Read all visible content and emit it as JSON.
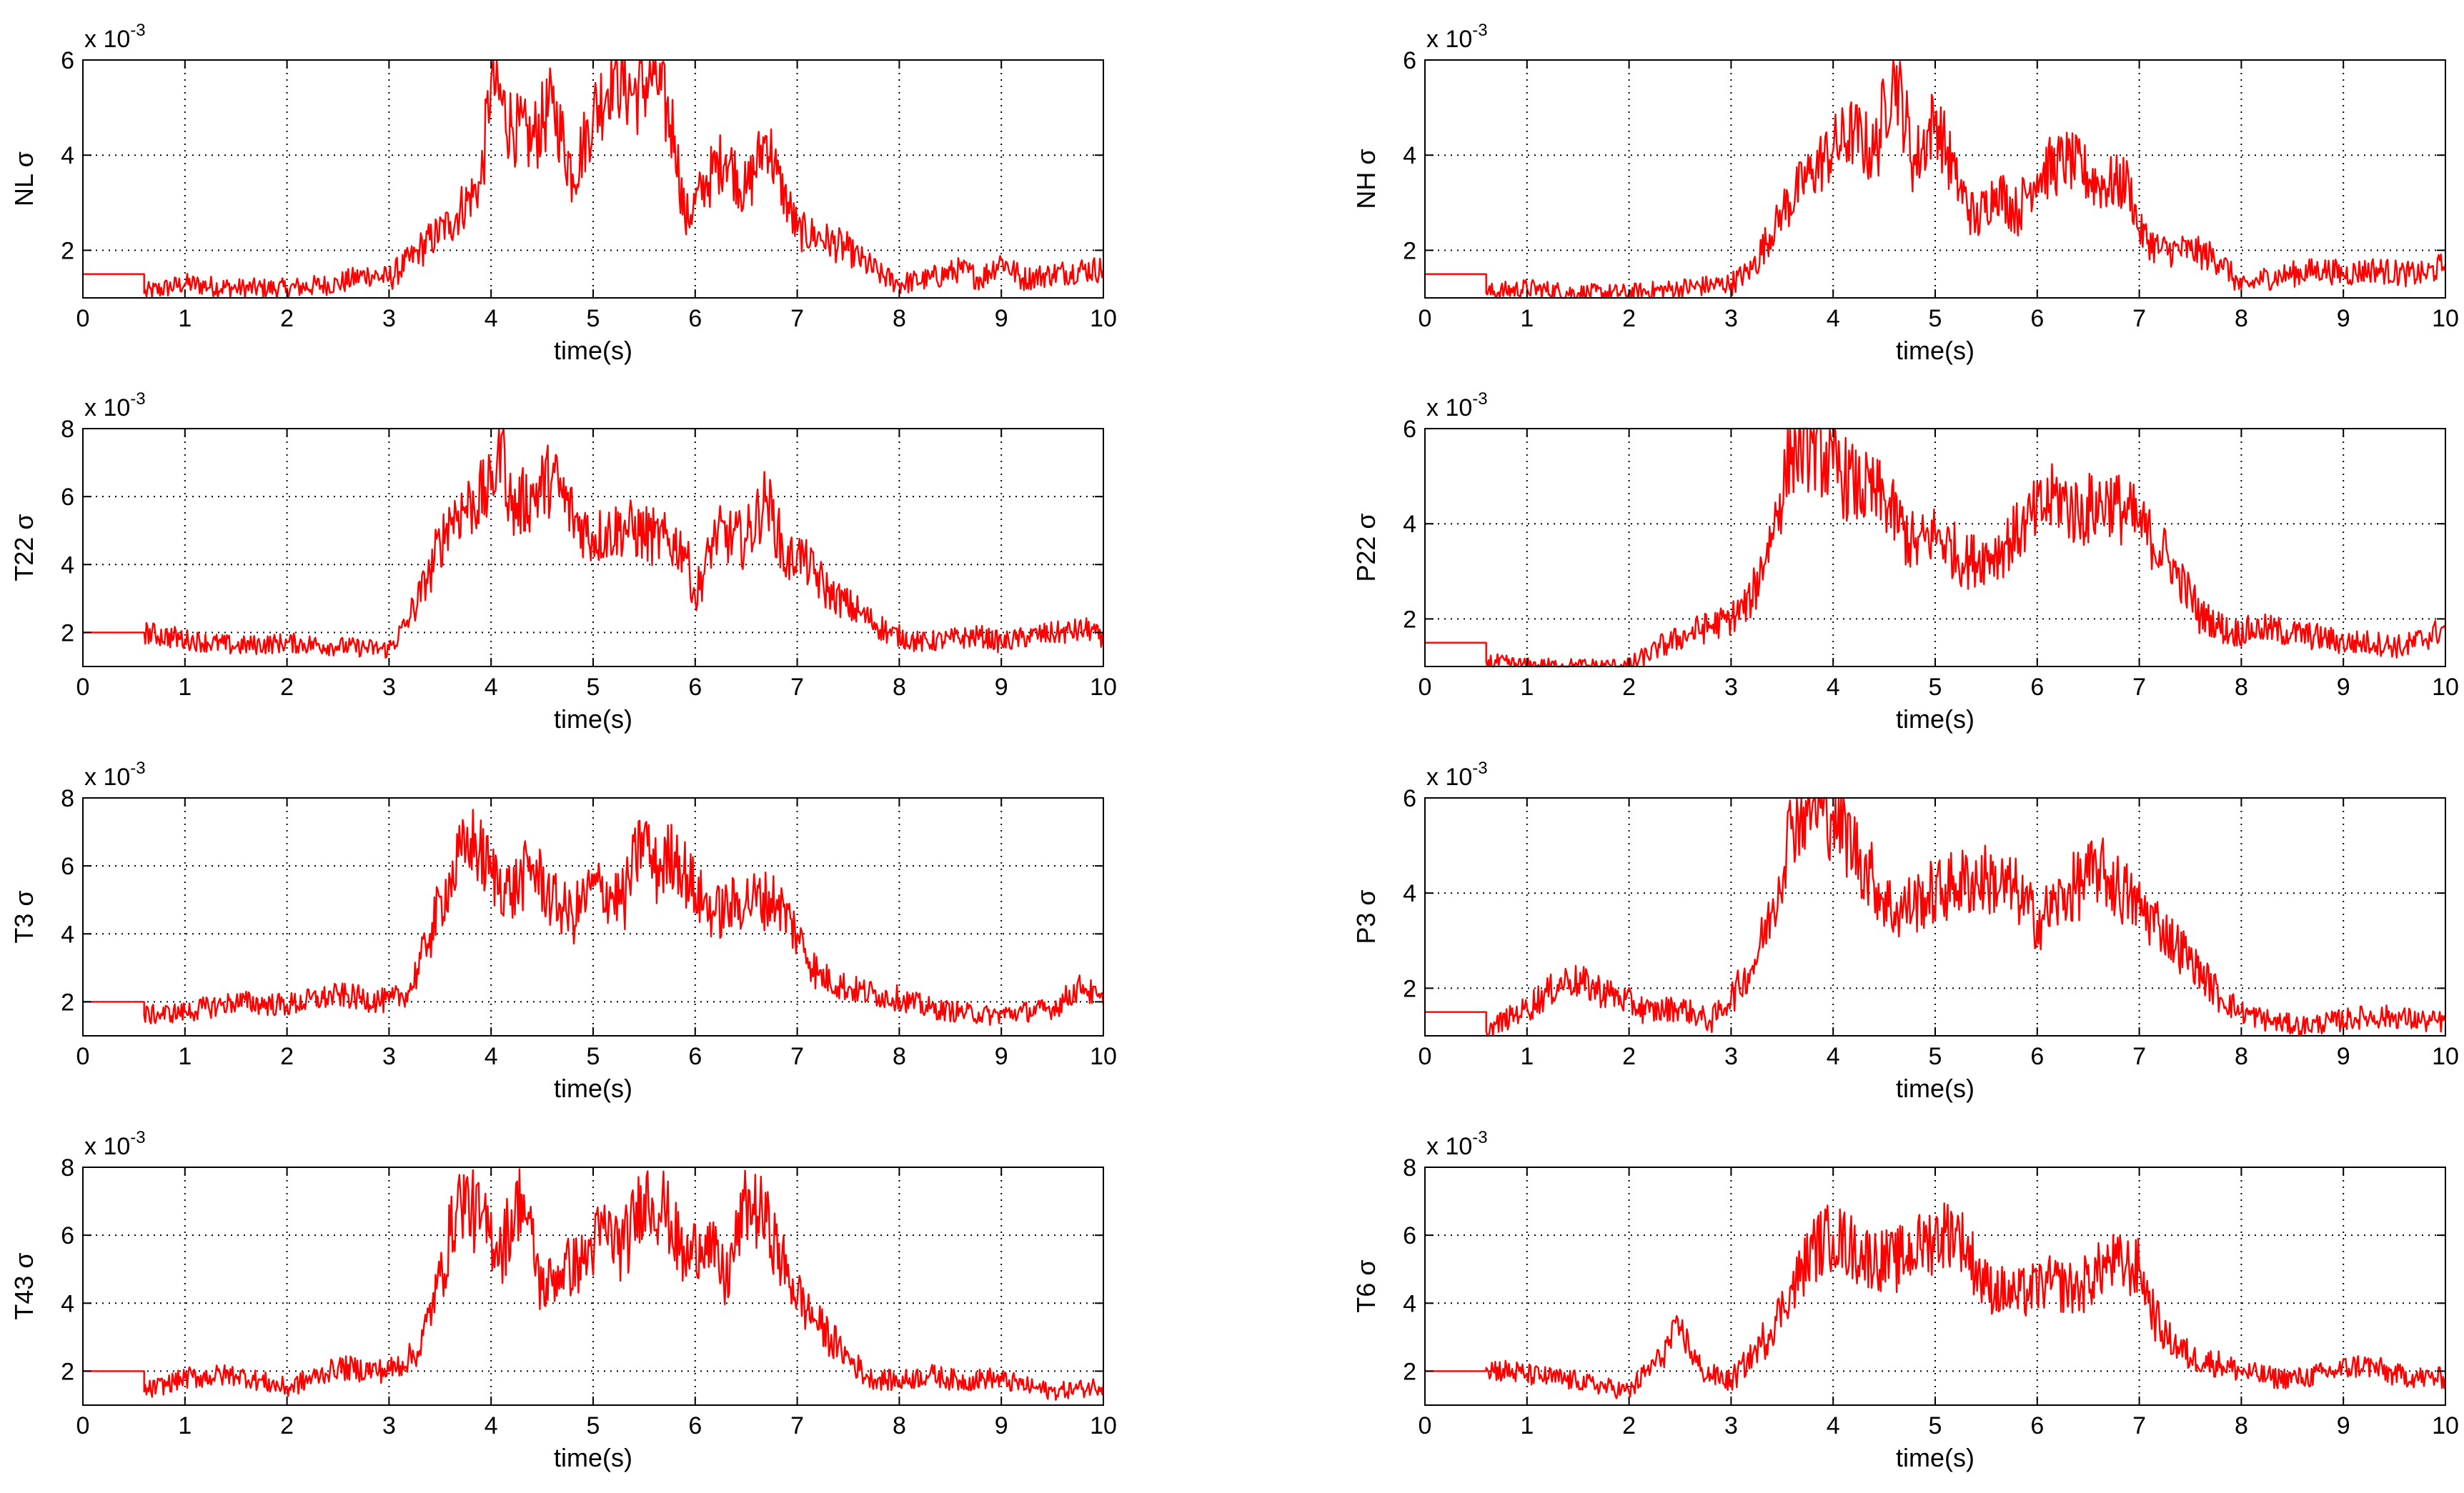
{
  "figure": {
    "background": "#ffffff",
    "line_color": "#ff0000",
    "axis_color": "#000000",
    "grid_style": "dotted"
  },
  "chart_data": [
    {
      "type": "line",
      "ylabel": "NL σ",
      "xlabel": "time(s)",
      "exponent_label": "x 10",
      "exponent": "-3",
      "xlim": [
        0,
        10
      ],
      "ylim": [
        1,
        6
      ],
      "xticks": [
        0,
        1,
        2,
        3,
        4,
        5,
        6,
        7,
        8,
        9,
        10
      ],
      "yticks": [
        2,
        4,
        6
      ],
      "grid": true,
      "series": [
        {
          "color": "#ff0000",
          "x": [
            0,
            0.6,
            0.6,
            1.0,
            1.5,
            2.0,
            2.5,
            2.8,
            3.0,
            3.3,
            3.6,
            3.9,
            4.0,
            4.2,
            4.4,
            4.6,
            4.8,
            5.0,
            5.2,
            5.4,
            5.6,
            5.8,
            5.9,
            6.1,
            6.3,
            6.5,
            6.7,
            6.8,
            7.0,
            7.2,
            7.5,
            7.8,
            8.0,
            8.3,
            8.6,
            8.8,
            9.0,
            9.2,
            9.5,
            9.8,
            10.0
          ],
          "y": [
            1.5,
            1.5,
            1.1,
            1.3,
            1.2,
            1.2,
            1.3,
            1.5,
            1.4,
            2.0,
            2.6,
            3.4,
            5.6,
            4.6,
            4.3,
            5.1,
            3.6,
            4.8,
            5.8,
            5.3,
            5.7,
            4.4,
            2.6,
            3.4,
            4.0,
            3.2,
            4.4,
            3.6,
            2.4,
            2.3,
            2.0,
            1.5,
            1.3,
            1.4,
            1.6,
            1.4,
            1.8,
            1.4,
            1.5,
            1.6,
            1.6
          ]
        }
      ]
    },
    {
      "type": "line",
      "ylabel": "NH σ",
      "xlabel": "time(s)",
      "exponent_label": "x 10",
      "exponent": "-3",
      "xlim": [
        0,
        10
      ],
      "ylim": [
        1,
        6
      ],
      "xticks": [
        0,
        1,
        2,
        3,
        4,
        5,
        6,
        7,
        8,
        9,
        10
      ],
      "yticks": [
        2,
        4,
        6
      ],
      "grid": true,
      "series": [
        {
          "color": "#ff0000",
          "x": [
            0,
            0.6,
            0.6,
            1.0,
            1.5,
            2.0,
            2.5,
            3.0,
            3.2,
            3.5,
            3.8,
            4.0,
            4.2,
            4.4,
            4.6,
            4.8,
            5.0,
            5.2,
            5.4,
            5.6,
            5.8,
            6.0,
            6.3,
            6.6,
            6.9,
            7.0,
            7.2,
            7.5,
            7.8,
            8.0,
            8.2,
            8.5,
            8.8,
            9.0,
            9.3,
            9.6,
            9.8,
            10.0
          ],
          "y": [
            1.5,
            1.5,
            1.1,
            1.2,
            1.1,
            1.1,
            1.2,
            1.3,
            1.6,
            2.8,
            3.7,
            4.1,
            4.5,
            4.0,
            5.8,
            3.8,
            4.8,
            3.5,
            2.6,
            3.3,
            2.8,
            3.6,
            3.9,
            3.4,
            3.4,
            2.4,
            2.0,
            2.0,
            1.8,
            1.2,
            1.4,
            1.5,
            1.6,
            1.5,
            1.6,
            1.5,
            1.5,
            1.7
          ]
        }
      ]
    },
    {
      "type": "line",
      "ylabel": "T22 σ",
      "xlabel": "time(s)",
      "exponent_label": "x 10",
      "exponent": "-3",
      "xlim": [
        0,
        10
      ],
      "ylim": [
        1,
        8
      ],
      "xticks": [
        0,
        1,
        2,
        3,
        4,
        5,
        6,
        7,
        8,
        9,
        10
      ],
      "yticks": [
        2,
        4,
        6,
        8
      ],
      "grid": true,
      "series": [
        {
          "color": "#ff0000",
          "x": [
            0,
            0.6,
            0.6,
            1.0,
            1.5,
            2.0,
            2.5,
            3.0,
            3.2,
            3.4,
            3.6,
            3.8,
            4.0,
            4.1,
            4.2,
            4.4,
            4.6,
            4.8,
            5.0,
            5.3,
            5.6,
            5.9,
            6.0,
            6.2,
            6.5,
            6.7,
            6.9,
            7.0,
            7.3,
            7.6,
            7.9,
            8.2,
            8.5,
            8.8,
            9.0,
            9.3,
            9.6,
            9.9,
            10.0
          ],
          "y": [
            2.0,
            2.0,
            2.0,
            1.8,
            1.6,
            1.7,
            1.6,
            1.5,
            2.4,
            3.8,
            5.4,
            5.8,
            6.2,
            7.8,
            5.6,
            6.0,
            6.6,
            5.4,
            4.8,
            5.1,
            4.8,
            4.5,
            3.0,
            4.9,
            4.7,
            6.0,
            4.0,
            4.4,
            3.2,
            2.6,
            2.0,
            1.7,
            1.8,
            1.9,
            1.7,
            1.9,
            2.0,
            2.1,
            1.6
          ]
        }
      ]
    },
    {
      "type": "line",
      "ylabel": "P22 σ",
      "xlabel": "time(s)",
      "exponent_label": "x 10",
      "exponent": "-3",
      "xlim": [
        0,
        10
      ],
      "ylim": [
        1,
        6
      ],
      "xticks": [
        0,
        1,
        2,
        3,
        4,
        5,
        6,
        7,
        8,
        9,
        10
      ],
      "yticks": [
        2,
        4,
        6
      ],
      "grid": true,
      "series": [
        {
          "color": "#ff0000",
          "x": [
            0,
            0.6,
            0.6,
            1.0,
            1.5,
            2.0,
            2.3,
            2.6,
            3.0,
            3.2,
            3.4,
            3.6,
            3.8,
            4.0,
            4.2,
            4.5,
            4.8,
            5.0,
            5.3,
            5.6,
            5.9,
            6.2,
            6.4,
            6.7,
            7.0,
            7.3,
            7.6,
            7.9,
            8.2,
            8.5,
            8.8,
            9.0,
            9.3,
            9.6,
            10.0
          ],
          "y": [
            1.5,
            1.5,
            1.1,
            1.0,
            1.0,
            1.0,
            1.4,
            1.7,
            2.0,
            2.4,
            3.8,
            5.6,
            5.7,
            5.2,
            4.8,
            4.5,
            3.5,
            3.8,
            3.2,
            3.4,
            4.0,
            4.6,
            4.2,
            4.5,
            4.0,
            3.2,
            2.1,
            1.7,
            1.8,
            1.7,
            1.6,
            1.5,
            1.5,
            1.4,
            1.8
          ]
        }
      ]
    },
    {
      "type": "line",
      "ylabel": "T3 σ",
      "xlabel": "time(s)",
      "exponent_label": "x 10",
      "exponent": "-3",
      "xlim": [
        0,
        10
      ],
      "ylim": [
        1,
        8
      ],
      "xticks": [
        0,
        1,
        2,
        3,
        4,
        5,
        6,
        7,
        8,
        9,
        10
      ],
      "yticks": [
        2,
        4,
        6,
        8
      ],
      "grid": true,
      "series": [
        {
          "color": "#ff0000",
          "x": [
            0,
            0.6,
            0.6,
            1.0,
            1.5,
            2.0,
            2.5,
            3.0,
            3.2,
            3.4,
            3.6,
            3.8,
            4.0,
            4.2,
            4.4,
            4.6,
            4.8,
            5.0,
            5.3,
            5.5,
            5.6,
            5.8,
            6.0,
            6.2,
            6.5,
            6.8,
            7.0,
            7.2,
            7.5,
            7.8,
            8.0,
            8.3,
            8.6,
            8.9,
            9.2,
            9.5,
            9.8,
            10.0
          ],
          "y": [
            2.0,
            2.0,
            1.6,
            1.7,
            2.0,
            1.9,
            2.2,
            2.0,
            2.3,
            4.0,
            5.6,
            6.8,
            5.8,
            5.2,
            6.0,
            5.0,
            4.5,
            5.4,
            5.0,
            7.0,
            5.8,
            6.4,
            5.2,
            4.6,
            5.0,
            5.0,
            4.0,
            2.8,
            2.4,
            2.2,
            2.1,
            1.8,
            1.7,
            1.6,
            1.7,
            1.8,
            2.5,
            1.9
          ]
        }
      ]
    },
    {
      "type": "line",
      "ylabel": "P3 σ",
      "xlabel": "time(s)",
      "exponent_label": "x 10",
      "exponent": "-3",
      "xlim": [
        0,
        10
      ],
      "ylim": [
        1,
        6
      ],
      "xticks": [
        0,
        1,
        2,
        3,
        4,
        5,
        6,
        7,
        8,
        9,
        10
      ],
      "yticks": [
        2,
        4,
        6
      ],
      "grid": true,
      "series": [
        {
          "color": "#ff0000",
          "x": [
            0,
            0.6,
            0.6,
            1.0,
            1.4,
            1.8,
            2.2,
            2.5,
            2.8,
            3.0,
            3.2,
            3.4,
            3.6,
            3.8,
            4.0,
            4.2,
            4.4,
            4.6,
            4.9,
            5.2,
            5.5,
            5.8,
            6.0,
            6.3,
            6.6,
            6.9,
            7.2,
            7.5,
            7.8,
            8.0,
            8.3,
            8.6,
            8.9,
            9.2,
            9.5,
            9.8,
            10.0
          ],
          "y": [
            1.5,
            1.5,
            1.1,
            1.6,
            2.2,
            1.9,
            1.5,
            1.6,
            1.3,
            1.8,
            2.4,
            3.6,
            5.6,
            5.9,
            5.7,
            5.0,
            4.2,
            3.6,
            3.9,
            4.2,
            4.3,
            4.0,
            3.4,
            4.0,
            4.5,
            3.9,
            3.3,
            2.6,
            1.8,
            1.5,
            1.3,
            1.2,
            1.3,
            1.4,
            1.4,
            1.3,
            1.3
          ]
        }
      ]
    },
    {
      "type": "line",
      "ylabel": "T43 σ",
      "xlabel": "time(s)",
      "exponent_label": "x 10",
      "exponent": "-3",
      "xlim": [
        0,
        10
      ],
      "ylim": [
        1,
        8
      ],
      "xticks": [
        0,
        1,
        2,
        3,
        4,
        5,
        6,
        7,
        8,
        9,
        10
      ],
      "yticks": [
        2,
        4,
        6,
        8
      ],
      "grid": true,
      "series": [
        {
          "color": "#ff0000",
          "x": [
            0,
            0.6,
            0.6,
            1.0,
            1.5,
            2.0,
            2.5,
            3.0,
            3.3,
            3.5,
            3.7,
            3.9,
            4.1,
            4.3,
            4.5,
            4.7,
            4.9,
            5.1,
            5.3,
            5.5,
            5.7,
            5.9,
            6.1,
            6.3,
            6.5,
            6.7,
            6.9,
            7.1,
            7.4,
            7.7,
            8.0,
            8.3,
            8.6,
            8.9,
            9.2,
            9.5,
            9.8,
            10.0
          ],
          "y": [
            2.0,
            2.0,
            1.4,
            1.8,
            1.9,
            1.5,
            2.1,
            2.0,
            2.6,
            4.8,
            7.2,
            6.4,
            5.6,
            7.2,
            4.4,
            5.0,
            5.2,
            6.2,
            5.6,
            7.2,
            6.8,
            5.2,
            6.0,
            4.6,
            7.0,
            6.4,
            4.8,
            3.8,
            2.7,
            1.8,
            1.7,
            1.9,
            1.7,
            1.8,
            1.6,
            1.4,
            1.5,
            1.6
          ]
        }
      ]
    },
    {
      "type": "line",
      "ylabel": "T6 σ",
      "xlabel": "time(s)",
      "exponent_label": "x 10",
      "exponent": "-3",
      "xlim": [
        0,
        10
      ],
      "ylim": [
        1,
        8
      ],
      "xticks": [
        0,
        1,
        2,
        3,
        4,
        5,
        6,
        7,
        8,
        9,
        10
      ],
      "yticks": [
        2,
        4,
        6,
        8
      ],
      "grid": true,
      "series": [
        {
          "color": "#ff0000",
          "x": [
            0,
            0.6,
            0.6,
            1.0,
            1.5,
            2.0,
            2.3,
            2.5,
            2.7,
            3.0,
            3.3,
            3.6,
            3.8,
            4.0,
            4.3,
            4.6,
            4.9,
            5.2,
            5.5,
            5.8,
            6.1,
            6.4,
            6.7,
            7.0,
            7.2,
            7.5,
            7.8,
            8.0,
            8.3,
            8.6,
            8.9,
            9.2,
            9.5,
            9.8,
            10.0
          ],
          "y": [
            2.0,
            2.0,
            2.1,
            1.9,
            1.7,
            1.4,
            2.4,
            3.3,
            2.0,
            1.7,
            2.8,
            4.4,
            5.6,
            6.0,
            5.4,
            5.2,
            5.8,
            6.2,
            4.5,
            4.2,
            4.6,
            4.4,
            5.2,
            5.0,
            3.2,
            2.4,
            2.2,
            2.0,
            1.8,
            1.8,
            2.0,
            2.2,
            1.9,
            1.8,
            1.8
          ]
        }
      ]
    }
  ]
}
